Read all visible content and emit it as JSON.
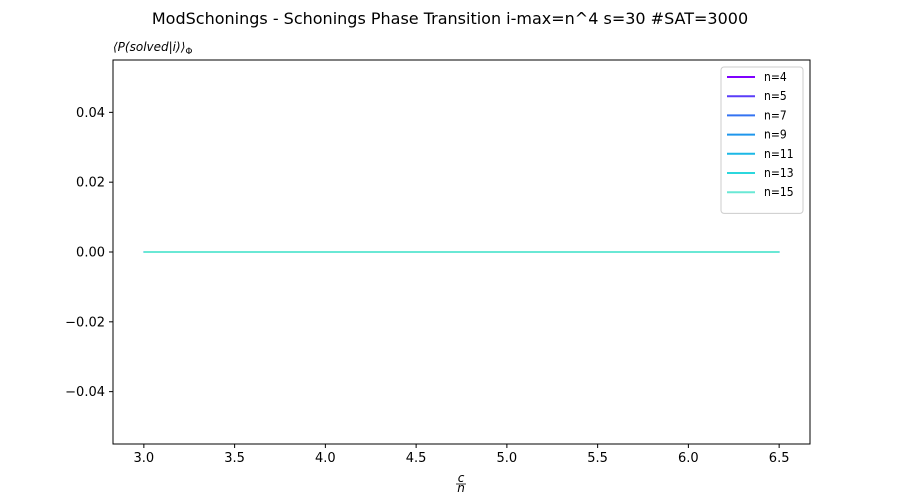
{
  "chart_data": {
    "type": "line",
    "title": "ModSchonings - Schonings Phase Transition  i-max=n^4 s=30 #SAT=3000",
    "xlabel": "c/n",
    "xlabel_numerator": "c",
    "xlabel_denominator": "n",
    "ylabel": "⟨P(solved|i)⟩Φ",
    "ylabel_main": "⟨P(solved|i)⟩",
    "ylabel_sub": "Φ",
    "xlim": [
      2.83,
      6.67
    ],
    "ylim": [
      -0.055,
      0.055
    ],
    "xticks": [
      3.0,
      3.5,
      4.0,
      4.5,
      5.0,
      5.5,
      6.0,
      6.5
    ],
    "xtick_labels": [
      "3.0",
      "3.5",
      "4.0",
      "4.5",
      "5.0",
      "5.5",
      "6.0",
      "6.5"
    ],
    "yticks": [
      0.04,
      0.02,
      0.0,
      -0.02,
      -0.04
    ],
    "ytick_labels": [
      "0.04",
      "0.02",
      "0.00",
      "−0.02",
      "−0.04"
    ],
    "grid": false,
    "legend_position": "top-right",
    "x": [
      3.0,
      6.5
    ],
    "series": [
      {
        "name": "n=4",
        "color": "#7f00ff",
        "values": [
          0.0,
          0.0
        ]
      },
      {
        "name": "n=5",
        "color": "#5a3df9",
        "values": [
          0.0,
          0.0
        ]
      },
      {
        "name": "n=7",
        "color": "#3473f2",
        "values": [
          0.0,
          0.0
        ]
      },
      {
        "name": "n=9",
        "color": "#1f96ec",
        "values": [
          0.0,
          0.0
        ]
      },
      {
        "name": "n=11",
        "color": "#1cb8e6",
        "values": [
          0.0,
          0.0
        ]
      },
      {
        "name": "n=13",
        "color": "#2bd7dd",
        "values": [
          0.0,
          0.0
        ]
      },
      {
        "name": "n=15",
        "color": "#6ae8d5",
        "values": [
          0.0,
          0.0
        ]
      }
    ]
  }
}
